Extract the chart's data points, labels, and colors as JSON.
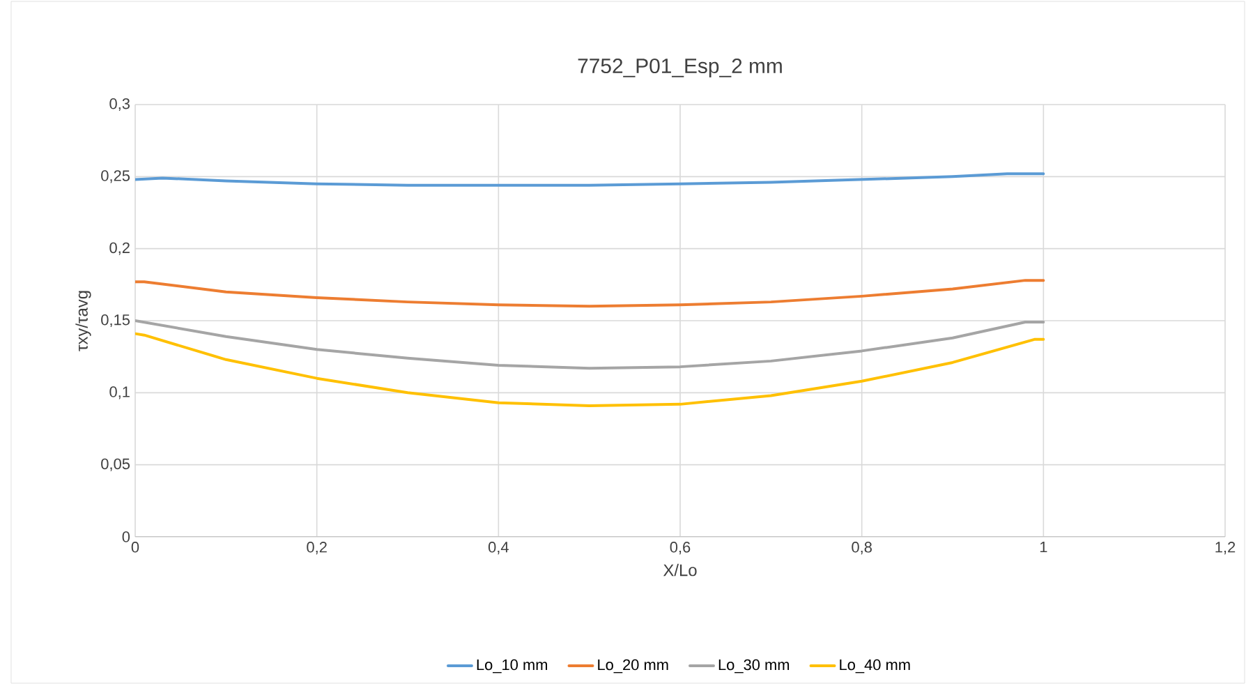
{
  "chart_data": {
    "type": "line",
    "title": "7752_P01_Esp_2 mm",
    "xlabel": "X/Lo",
    "ylabel": "τxy/τavg",
    "xlim": [
      0,
      1.2
    ],
    "ylim": [
      0,
      0.3
    ],
    "xticks": [
      0,
      {
        "value": 0.2,
        "label": "0,2"
      },
      {
        "value": 0.4,
        "label": "0,4"
      },
      {
        "value": 0.6,
        "label": "0,6"
      },
      {
        "value": 0.8,
        "label": "0,8"
      },
      1,
      {
        "value": 1.2,
        "label": "1,2"
      }
    ],
    "yticks": [
      0,
      {
        "value": 0.05,
        "label": "0,05"
      },
      {
        "value": 0.1,
        "label": "0,1"
      },
      {
        "value": 0.15,
        "label": "0,15"
      },
      {
        "value": 0.2,
        "label": "0,2"
      },
      {
        "value": 0.25,
        "label": "0,25"
      },
      {
        "value": 0.3,
        "label": "0,3"
      }
    ],
    "grid": true,
    "legend": "bottom",
    "marker": "none",
    "line_style": "solid",
    "series": [
      {
        "name": "Lo_10 mm",
        "color": "#5b9bd5",
        "x": [
          0,
          0.03,
          0.1,
          0.2,
          0.3,
          0.4,
          0.5,
          0.6,
          0.7,
          0.8,
          0.9,
          0.96,
          1
        ],
        "values": [
          0.248,
          0.249,
          0.247,
          0.245,
          0.244,
          0.244,
          0.244,
          0.245,
          0.246,
          0.248,
          0.25,
          0.252,
          0.252
        ]
      },
      {
        "name": "Lo_20 mm",
        "color": "#ed7d31",
        "x": [
          0,
          0.01,
          0.1,
          0.2,
          0.3,
          0.4,
          0.5,
          0.6,
          0.7,
          0.8,
          0.9,
          0.98,
          1
        ],
        "values": [
          0.177,
          0.177,
          0.17,
          0.166,
          0.163,
          0.161,
          0.16,
          0.161,
          0.163,
          0.167,
          0.172,
          0.178,
          0.178
        ]
      },
      {
        "name": "Lo_30 mm",
        "color": "#a5a5a5",
        "x": [
          0,
          0.1,
          0.2,
          0.3,
          0.4,
          0.5,
          0.6,
          0.7,
          0.8,
          0.9,
          0.98,
          1
        ],
        "values": [
          0.15,
          0.139,
          0.13,
          0.124,
          0.119,
          0.117,
          0.118,
          0.122,
          0.129,
          0.138,
          0.149,
          0.149
        ]
      },
      {
        "name": "Lo_40 mm",
        "color": "#ffc000",
        "x": [
          0,
          0.01,
          0.1,
          0.2,
          0.3,
          0.4,
          0.5,
          0.6,
          0.7,
          0.8,
          0.9,
          0.99,
          1
        ],
        "values": [
          0.141,
          0.14,
          0.123,
          0.11,
          0.1,
          0.093,
          0.091,
          0.092,
          0.098,
          0.108,
          0.121,
          0.137,
          0.137
        ]
      }
    ]
  }
}
